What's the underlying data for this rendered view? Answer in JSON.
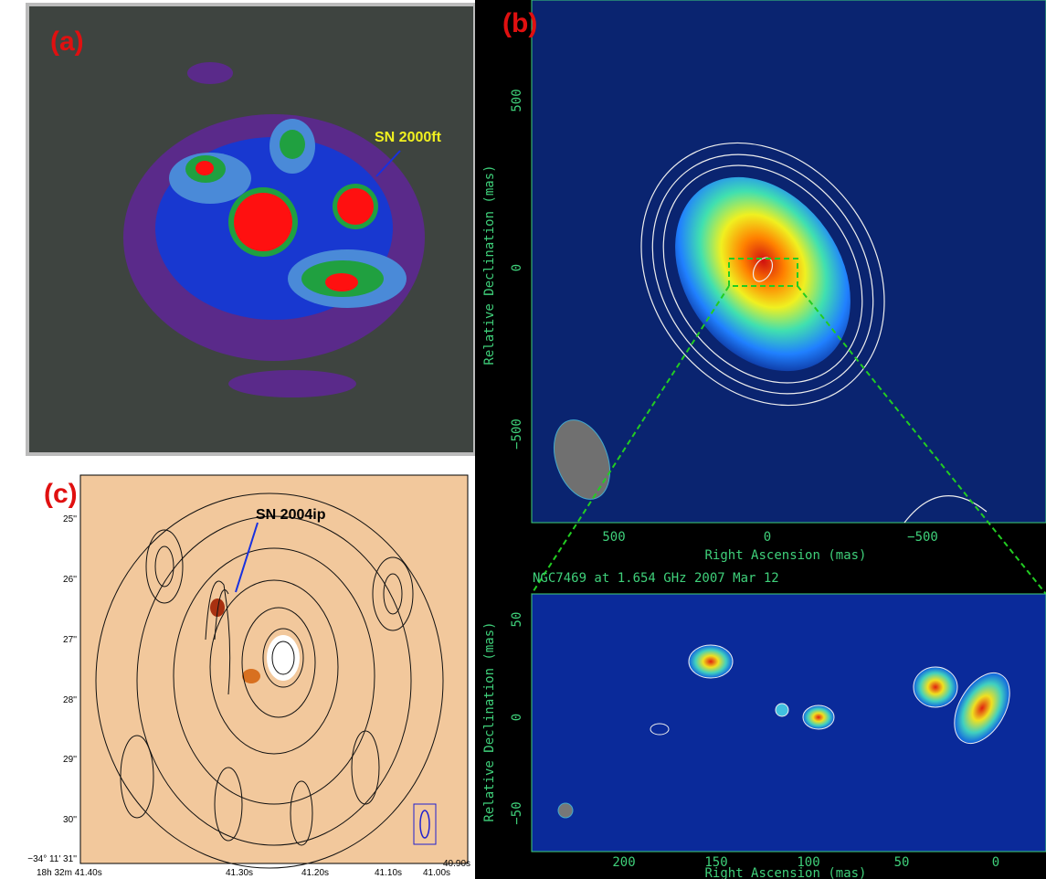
{
  "panels": [
    {
      "label": "(a)",
      "annotation": "SN 2000ft"
    },
    {
      "label": "(b)",
      "upper": {
        "yticks": [
          "500",
          "0",
          "−500"
        ],
        "xticks": [
          "500",
          "0",
          "−500"
        ],
        "xlabel": "Right Ascension  (mas)",
        "ylabel": "Relative Declination  (mas)"
      },
      "title": "NGC7469 at 1.654 GHz 2007 Mar 12",
      "lower": {
        "yticks": [
          "50",
          "0",
          "−50"
        ],
        "xticks": [
          "200",
          "150",
          "100",
          "50",
          "0"
        ],
        "xlabel": "Right Ascension  (mas)",
        "ylabel": "Relative Declination  (mas)"
      }
    },
    {
      "label": "(c)",
      "annotation": "SN 2004ip",
      "yticks": [
        "25''",
        "26''",
        "27''",
        "28''",
        "29''",
        "30''",
        "−34° 11' 31''"
      ],
      "xticks": [
        "18h 32m 41.40s",
        "41.30s",
        "41.20s",
        "41.10s",
        "41.00s",
        "40.90s"
      ]
    }
  ]
}
